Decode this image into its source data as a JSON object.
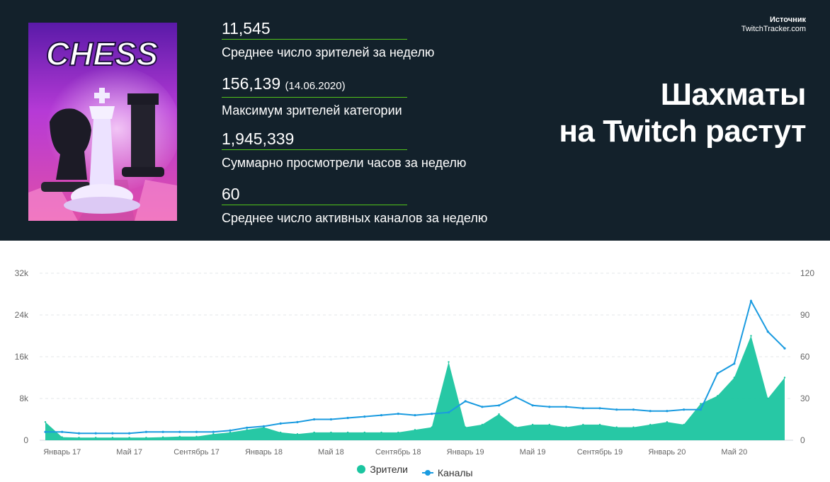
{
  "header": {
    "stats": [
      {
        "value": "11,545",
        "date": "",
        "label": "Среднее число зрителей за неделю"
      },
      {
        "value": "156,139",
        "date": "(14.06.2020)",
        "label": "Максимум зрителей категории"
      },
      {
        "value": "1,945,339",
        "date": "",
        "label": "Суммарно просмотрели часов за неделю"
      },
      {
        "value": "60",
        "date": "",
        "label": "Среднее число активных каналов за неделю"
      }
    ],
    "source_title": "Источник",
    "source_name": "TwitchTracker.com",
    "headline_line1": "Шахматы",
    "headline_line2": "на Twitch растут",
    "cover_text": "CHESS"
  },
  "colors": {
    "background_dark": "#13212b",
    "accent_rule": "#52c41a",
    "viewers": "#1bc5a0",
    "channels": "#1a9be0"
  },
  "chart_data": {
    "type": "area",
    "x_axis_labels": [
      "Январь 17",
      "Май 17",
      "Сентябрь 17",
      "Январь 18",
      "Май 18",
      "Сентябрь 18",
      "Январь 19",
      "Май 19",
      "Сентябрь 19",
      "Январь 20",
      "Май 20"
    ],
    "y_left_ticks": [
      "0",
      "8k",
      "16k",
      "24k",
      "32k"
    ],
    "y_right_ticks": [
      "0",
      "30",
      "60",
      "90",
      "120"
    ],
    "y_left_range": [
      0,
      32000
    ],
    "y_right_range": [
      0,
      120
    ],
    "x_range": [
      "2016-12",
      "2020-08"
    ],
    "grid": true,
    "legend_position": "bottom",
    "series": [
      {
        "name": "Зрители",
        "axis": "left",
        "kind": "area",
        "x": [
          "2016-12",
          "2017-01",
          "2017-02",
          "2017-03",
          "2017-04",
          "2017-05",
          "2017-06",
          "2017-07",
          "2017-08",
          "2017-09",
          "2017-10",
          "2017-11",
          "2017-12",
          "2018-01",
          "2018-02",
          "2018-03",
          "2018-04",
          "2018-05",
          "2018-06",
          "2018-07",
          "2018-08",
          "2018-09",
          "2018-10",
          "2018-11",
          "2018-12",
          "2019-01",
          "2019-02",
          "2019-03",
          "2019-04",
          "2019-05",
          "2019-06",
          "2019-07",
          "2019-08",
          "2019-09",
          "2019-10",
          "2019-11",
          "2019-12",
          "2020-01",
          "2020-02",
          "2020-03",
          "2020-04",
          "2020-05",
          "2020-06",
          "2020-07",
          "2020-08"
        ],
        "values": [
          3500,
          600,
          500,
          500,
          500,
          500,
          500,
          600,
          700,
          700,
          1200,
          1500,
          2000,
          2500,
          1500,
          1200,
          1500,
          1500,
          1500,
          1500,
          1500,
          1500,
          2000,
          2500,
          15000,
          2500,
          3000,
          5000,
          2500,
          3000,
          3000,
          2500,
          3000,
          3000,
          2500,
          2500,
          3000,
          3500,
          3000,
          7000,
          8500,
          12000,
          20000,
          8000,
          12000
        ]
      },
      {
        "name": "Каналы",
        "axis": "right",
        "kind": "line",
        "x": [
          "2016-12",
          "2017-01",
          "2017-02",
          "2017-03",
          "2017-04",
          "2017-05",
          "2017-06",
          "2017-07",
          "2017-08",
          "2017-09",
          "2017-10",
          "2017-11",
          "2017-12",
          "2018-01",
          "2018-02",
          "2018-03",
          "2018-04",
          "2018-05",
          "2018-06",
          "2018-07",
          "2018-08",
          "2018-09",
          "2018-10",
          "2018-11",
          "2018-12",
          "2019-01",
          "2019-02",
          "2019-03",
          "2019-04",
          "2019-05",
          "2019-06",
          "2019-07",
          "2019-08",
          "2019-09",
          "2019-10",
          "2019-11",
          "2019-12",
          "2020-01",
          "2020-02",
          "2020-03",
          "2020-04",
          "2020-05",
          "2020-06",
          "2020-07",
          "2020-08"
        ],
        "values": [
          6,
          6,
          5,
          5,
          5,
          5,
          6,
          6,
          6,
          6,
          6,
          7,
          9,
          10,
          12,
          13,
          15,
          15,
          16,
          17,
          18,
          19,
          18,
          19,
          20,
          28,
          24,
          25,
          31,
          25,
          24,
          24,
          23,
          23,
          22,
          22,
          21,
          21,
          22,
          22,
          48,
          55,
          100,
          78,
          66
        ]
      }
    ]
  }
}
